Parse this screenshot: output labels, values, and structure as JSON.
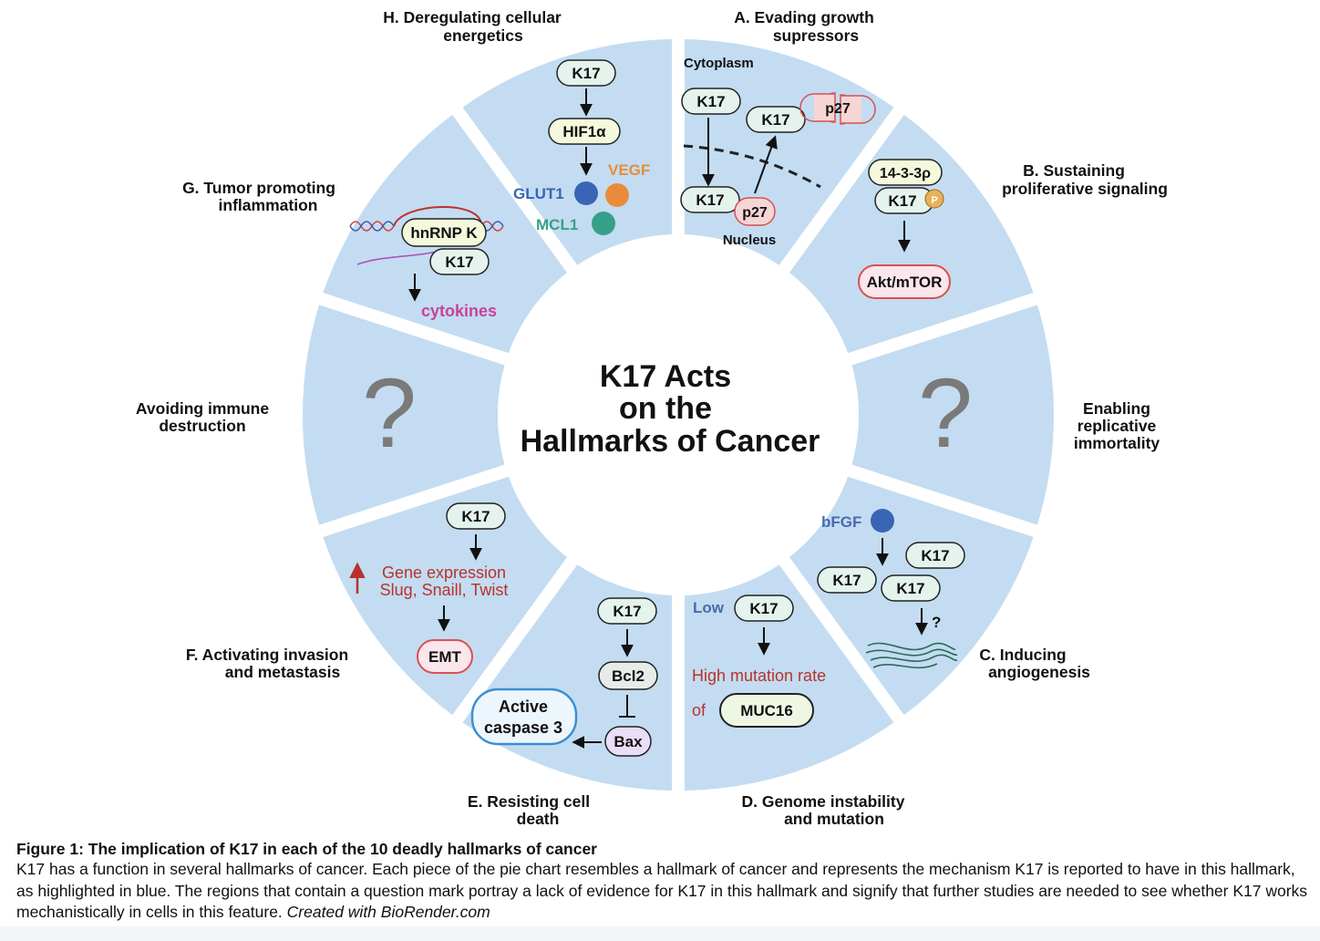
{
  "center_title": [
    "K17 Acts",
    "on the",
    "Hallmarks of Cancer"
  ],
  "sectors": {
    "A": {
      "title": [
        "A. Evading growth",
        "supressors"
      ],
      "labels": {
        "cytoplasm": "Cytoplasm",
        "nucleus": "Nucleus"
      },
      "nodes": {
        "k17_top": "K17",
        "k17_mid": "K17",
        "k17_bottom": "K17",
        "p27_top": "p27",
        "p27_bottom": "p27"
      }
    },
    "B": {
      "title": [
        "B. Sustaining",
        "proliferative signaling"
      ],
      "nodes": {
        "adaptor": "14-3-3ρ",
        "k17": "K17",
        "phospho": "P",
        "akt": "Akt/mTOR"
      }
    },
    "enabling": {
      "title": [
        "Enabling",
        "replicative",
        "immortality"
      ],
      "mark": "?"
    },
    "C": {
      "title": [
        "C. Inducing",
        "angiogenesis"
      ],
      "nodes": {
        "bfgf": "bFGF",
        "k17_a": "K17",
        "k17_b": "K17",
        "k17_c": "K17",
        "question": "?"
      }
    },
    "D": {
      "title": [
        "D. Genome instability",
        "and mutation"
      ],
      "nodes": {
        "low": "Low",
        "k17": "K17",
        "high_rate": "High mutation rate",
        "of": "of",
        "muc16": "MUC16"
      }
    },
    "E": {
      "title": [
        "E. Resisting cell",
        "death"
      ],
      "nodes": {
        "k17": "K17",
        "bcl2": "Bcl2",
        "bax": "Bax",
        "caspase": [
          "Active",
          "caspase 3"
        ]
      }
    },
    "F": {
      "title": [
        "F.  Activating invasion",
        "and metastasis"
      ],
      "nodes": {
        "k17": "K17",
        "gene_expr": "Gene expression",
        "genes": "Slug, Snaill, Twist",
        "emt": "EMT"
      }
    },
    "avoiding": {
      "title": [
        "Avoiding immune",
        "destruction"
      ],
      "mark": "?"
    },
    "G": {
      "title": [
        "G. Tumor promoting",
        "inflammation"
      ],
      "nodes": {
        "hnrnpk": "hnRNP K",
        "k17": "K17",
        "cytokines": "cytokines"
      }
    },
    "H": {
      "title": [
        "H. Deregulating cellular",
        "energetics"
      ],
      "nodes": {
        "k17": "K17",
        "hif": "HIF1α",
        "vegf": "VEGF",
        "glut1": "GLUT1",
        "mcl1": "MCL1"
      }
    }
  },
  "colors": {
    "sector_fill": "#c3dcf1",
    "green_node": "#e4f4ec",
    "hif_node": "#f4f8dc",
    "p27_node": "#f6d5d5",
    "red_border": "#d95050",
    "purple_node": "#e9def5",
    "blue_text": "#4a6ab0",
    "orange": "#e88c3b",
    "teal": "#35a08a",
    "glut_blue": "#3a64b4",
    "magenta": "#c8429b",
    "red_text": "#b8322c",
    "phospho": "#e7b25a"
  },
  "caption": {
    "title": "Figure 1: The implication of K17 in each of the 10 deadly hallmarks of cancer",
    "body": "K17 has a function in several hallmarks of cancer. Each piece of the pie chart resembles a hallmark of cancer and represents the mechanism K17 is reported to have in this hallmark, as highlighted in blue. The regions that contain a question mark portray a lack of evidence for K17 in this hallmark and signify that further studies are needed to see whether K17 works mechanistically in cells in this feature.",
    "credit": "Created with BioRender.com"
  }
}
